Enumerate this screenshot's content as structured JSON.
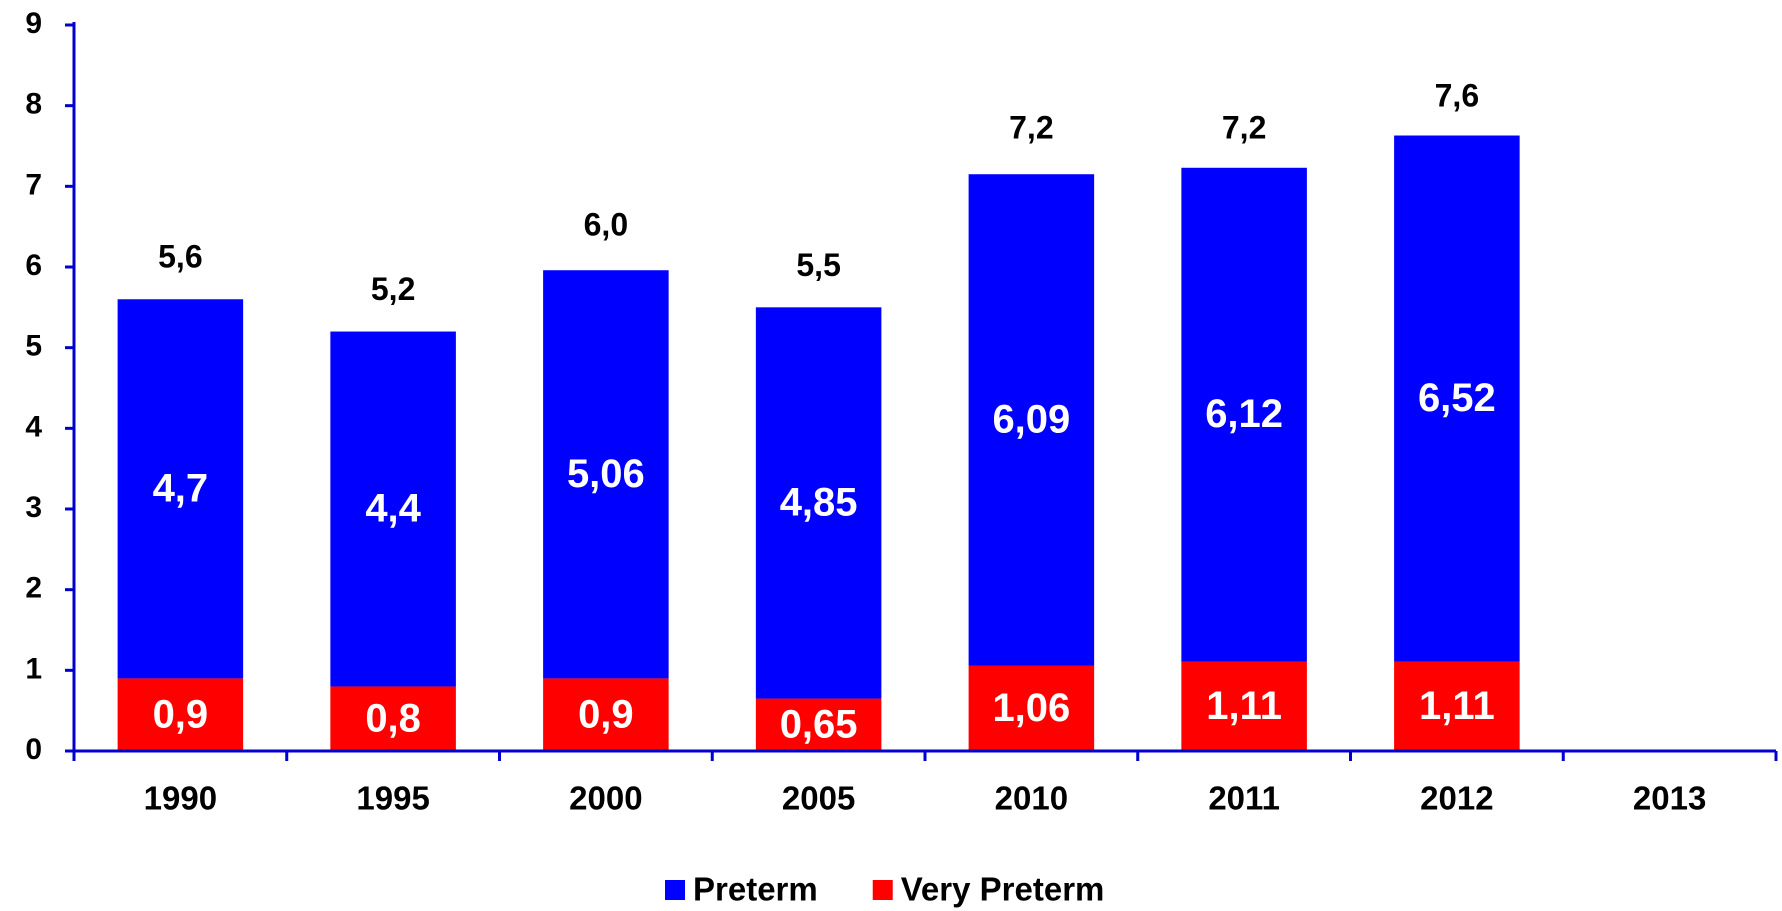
{
  "chart_data": {
    "type": "stacked_bar",
    "categories": [
      "1990",
      "1995",
      "2000",
      "2005",
      "2010",
      "2011",
      "2012",
      "2013"
    ],
    "series": [
      {
        "name": "Very Preterm",
        "color": "#ff0000",
        "values": [
          0.9,
          0.8,
          0.9,
          0.65,
          1.06,
          1.11,
          1.11,
          null
        ],
        "value_labels": [
          "0,9",
          "0,8",
          "0,9",
          "0,65",
          "1,06",
          "1,11",
          "1,11",
          null
        ]
      },
      {
        "name": "Preterm",
        "color": "#0000ff",
        "values": [
          4.7,
          4.4,
          5.06,
          4.85,
          6.09,
          6.12,
          6.52,
          null
        ],
        "value_labels": [
          "4,7",
          "4,4",
          "5,06",
          "4,85",
          "6,09",
          "6,12",
          "6,52",
          null
        ]
      }
    ],
    "totals": {
      "values": [
        5.6,
        5.2,
        6.0,
        5.5,
        7.2,
        7.2,
        7.6,
        null
      ],
      "value_labels": [
        "5,6",
        "5,2",
        "6,0",
        "5,5",
        "7,2",
        "7,2",
        "7,6",
        null
      ]
    },
    "ylim": [
      0,
      9
    ],
    "yticks": [
      0,
      1,
      2,
      3,
      4,
      5,
      6,
      7,
      8,
      9
    ],
    "legend": "bottom"
  }
}
